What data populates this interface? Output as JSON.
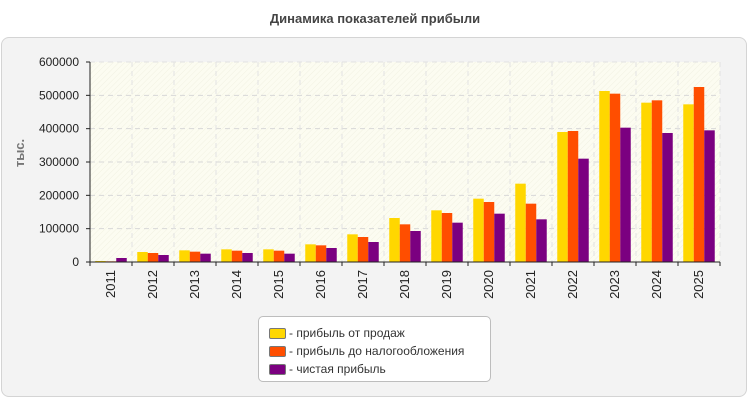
{
  "chart_data": {
    "type": "bar",
    "title": "Динамика показателей прибыли",
    "ylabel": "тыс.",
    "xlabel": "",
    "ylim": [
      0,
      600000
    ],
    "yticks": [
      "0",
      "100000",
      "200000",
      "300000",
      "400000",
      "500000",
      "600000"
    ],
    "categories": [
      "2011",
      "2012",
      "2013",
      "2014",
      "2015",
      "2016",
      "2017",
      "2018",
      "2019",
      "2020",
      "2021",
      "2022",
      "2023",
      "2024",
      "2025"
    ],
    "series": [
      {
        "name": "- прибыль от продаж",
        "color": "#ffd700",
        "values": [
          3000,
          30000,
          35000,
          38000,
          38000,
          53000,
          83000,
          132000,
          155000,
          190000,
          235000,
          390000,
          513000,
          478000,
          473000
        ]
      },
      {
        "name": "- прибыль до налогообложения",
        "color": "#ff4e00",
        "values": [
          2000,
          27000,
          31000,
          34000,
          34000,
          50000,
          75000,
          113000,
          147000,
          180000,
          175000,
          393000,
          505000,
          485000,
          525000
        ]
      },
      {
        "name": "- чистая прибыль",
        "color": "#7b0080",
        "values": [
          12000,
          21000,
          25000,
          27000,
          25000,
          42000,
          60000,
          93000,
          118000,
          145000,
          128000,
          310000,
          403000,
          387000,
          395000
        ]
      }
    ],
    "grid": true,
    "legend_position": "bottom"
  }
}
